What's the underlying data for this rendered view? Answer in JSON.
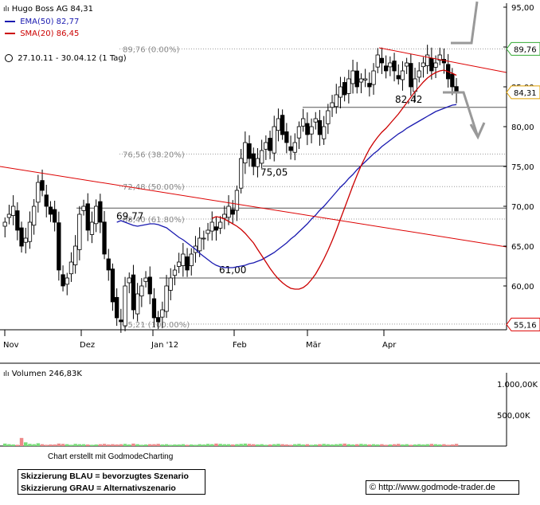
{
  "header": {
    "title": "Hugo Boss AG 84,31",
    "ema_label": "EMA(50) 82,77",
    "sma_label": "SMA(20) 86,45",
    "period": "27.10.11 - 30.04.12 (1 Tag)"
  },
  "volume_label": "Volumen 246,83K",
  "credit": "Chart erstellt mit GodmodeCharting",
  "sketch": {
    "blue": "Skizzierung BLAU = bevorzugtes Szenario",
    "grey": "Skizzierung GRAU = Alternativszenario"
  },
  "url": "© http://www.godmode-trader.de",
  "colors": {
    "up": "#77dd77",
    "down": "#ee8888",
    "ema": "#1a1ab0",
    "sma": "#cc0000",
    "trend": "#dd0000",
    "scenario": "#999999",
    "fib": "#999999",
    "level": "#555555"
  },
  "chart_data": {
    "type": "candlestick",
    "title": "Hugo Boss AG 84,31",
    "x_range": [
      "2011-10-27",
      "2012-04-30"
    ],
    "x_ticks": [
      "Nov",
      "Dez",
      "Jan '12",
      "Feb",
      "Mär",
      "Apr"
    ],
    "y_ticks": [
      60,
      65,
      70,
      75,
      80,
      85,
      90,
      95
    ],
    "y_tick_labels": [
      "60,00",
      "65,00",
      "70,00",
      "75,00",
      "80,00",
      "85,00",
      "90,00",
      "95,00"
    ],
    "ylim": [
      54.5,
      95.5
    ],
    "fib_levels": [
      {
        "value": 89.76,
        "label": "89,76 (0.00%)"
      },
      {
        "value": 76.56,
        "label": "76,56 (38.20%)"
      },
      {
        "value": 72.48,
        "label": "72,48 (50.00%)"
      },
      {
        "value": 68.4,
        "label": "68,40 (61.80%)"
      },
      {
        "value": 55.21,
        "label": "55,21 (100.00%)"
      }
    ],
    "horizontal_levels": [
      {
        "value": 82.42,
        "label": "82,42"
      },
      {
        "value": 75.05,
        "label": "75,05"
      },
      {
        "value": 69.77,
        "label": "69,77"
      },
      {
        "value": 61.0,
        "label": "61,00"
      }
    ],
    "price_labels": [
      {
        "value": 89.76,
        "label": "89,76",
        "color": "#33aa33"
      },
      {
        "value": 84.31,
        "label": "84,31",
        "color": "#e0a000"
      },
      {
        "value": 55.16,
        "label": "55,16",
        "color": "#dd0000"
      }
    ],
    "trendlines": [
      {
        "name": "downtrend",
        "from": [
          0,
          75.0
        ],
        "to": [
          130,
          65.0
        ]
      },
      {
        "name": "resistance",
        "from": [
          97,
          89.9
        ],
        "to": [
          130,
          86.8
        ]
      }
    ],
    "series": {
      "close": [
        68,
        69,
        70,
        67,
        65,
        66,
        68,
        70,
        73,
        72,
        70,
        69,
        68,
        62,
        60,
        61,
        63,
        65,
        69,
        70,
        67,
        68,
        70,
        68,
        64,
        62,
        58,
        56,
        55.5,
        60,
        61,
        57,
        59,
        60,
        61,
        59,
        56,
        55.5,
        57,
        60,
        61,
        62,
        63,
        64,
        62,
        64,
        65,
        66,
        66,
        67,
        68,
        67,
        68,
        69,
        70,
        69,
        72,
        76,
        78,
        76,
        75,
        76,
        77,
        78,
        77,
        80,
        81,
        79,
        78,
        77,
        78,
        80,
        81,
        79,
        80,
        81,
        79,
        80,
        82,
        83,
        84,
        85,
        84,
        86,
        87,
        85,
        86,
        86,
        85,
        87,
        89,
        88,
        87,
        88,
        87,
        86,
        87,
        88,
        85,
        86,
        87,
        88,
        89,
        87,
        88,
        89,
        88,
        86,
        85,
        84.31
      ],
      "ema50": [
        68.0,
        68.2,
        68.0,
        67.8,
        67.6,
        67.5,
        67.6,
        67.7,
        67.8,
        67.8,
        67.7,
        67.5,
        67.3,
        66.9,
        66.5,
        66.1,
        65.8,
        65.4,
        65.0,
        64.6,
        64.1,
        63.7,
        63.3,
        62.9,
        62.6,
        62.4,
        62.3,
        62.3,
        62.3,
        62.4,
        62.5,
        62.6,
        62.8,
        62.9,
        63.1,
        63.3,
        63.6,
        63.9,
        64.2,
        64.6,
        65.0,
        65.4,
        65.9,
        66.3,
        66.8,
        67.3,
        67.8,
        68.4,
        68.9,
        69.5,
        70.0,
        70.6,
        71.2,
        71.8,
        72.4,
        72.9,
        73.5,
        74.0,
        74.6,
        75.1,
        75.6,
        76.1,
        76.6,
        77.0,
        77.5,
        77.9,
        78.3,
        78.7,
        79.1,
        79.4,
        79.8,
        80.1,
        80.4,
        80.7,
        81.0,
        81.3,
        81.6,
        81.9,
        82.1,
        82.3,
        82.5,
        82.7,
        82.77
      ],
      "sma20": [
        68.5,
        68.7,
        68.6,
        68.4,
        68.1,
        67.8,
        67.5,
        67.1,
        66.6,
        66.0,
        65.4,
        64.6,
        63.8,
        63.0,
        62.2,
        61.5,
        60.9,
        60.4,
        60.0,
        59.7,
        59.6,
        59.6,
        59.8,
        60.2,
        60.8,
        61.5,
        62.4,
        63.4,
        64.5,
        65.7,
        67.0,
        68.4,
        69.8,
        71.2,
        72.6,
        73.9,
        75.1,
        76.2,
        77.2,
        78.0,
        78.7,
        79.3,
        79.8,
        80.4,
        81.0,
        81.6,
        82.3,
        83.0,
        83.7,
        84.4,
        85.0,
        85.6,
        86.1,
        86.5,
        86.8,
        87.0,
        87.1,
        86.9,
        86.7,
        86.45
      ],
      "volume": [
        40,
        30,
        25,
        20,
        130,
        60,
        35,
        30,
        45,
        30,
        20,
        25,
        25,
        40,
        35,
        30,
        20,
        35,
        30,
        30,
        25,
        20,
        25,
        30,
        35,
        25,
        30,
        25,
        30,
        35,
        25,
        40,
        30,
        20,
        25,
        30,
        30,
        35,
        25,
        30,
        20,
        25,
        25,
        30,
        20,
        25,
        20,
        30,
        25,
        35,
        30,
        40,
        35,
        30,
        30,
        25,
        30,
        35,
        40,
        35,
        30,
        25,
        30,
        20,
        25,
        30,
        35,
        30,
        25,
        20,
        30,
        35,
        25,
        30,
        20,
        25,
        30,
        35,
        30,
        25,
        30,
        35,
        40,
        30,
        25,
        30,
        35,
        30,
        25,
        30,
        25,
        30,
        20,
        25,
        30,
        35,
        25,
        30,
        20,
        25,
        30,
        25,
        30,
        35,
        30,
        25,
        30,
        20,
        25,
        35
      ],
      "volume_ticks": [
        {
          "value": 500,
          "label": "500,00K"
        },
        {
          "value": 1000,
          "label": "1.000,00K"
        }
      ]
    }
  }
}
